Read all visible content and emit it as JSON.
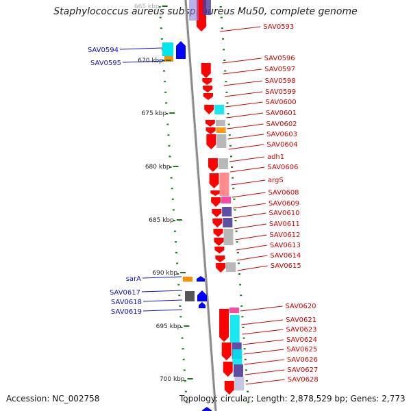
{
  "title": "Staphylococcus aureus subsp. aureus Mu50, complete genome",
  "footer": {
    "accession": "Accession: NC_002758",
    "summary": "Topology: circular; Length: 2,878,529 bp; Genes: 2,773"
  },
  "scale_labels": [
    "665 kbp",
    "670 kbp",
    "675 kbp",
    "680 kbp",
    "685 kbp",
    "690 kbp",
    "695 kbp",
    "700 kbp"
  ],
  "minus_strand_genes": [
    "SAV0594",
    "SAV0595",
    "sarA",
    "SAV0617",
    "SAV0618",
    "SAV0619"
  ],
  "plus_strand_genes": [
    "SAV0593",
    "SAV0596",
    "SAV0597",
    "SAV0598",
    "SAV0599",
    "SAV0600",
    "SAV0601",
    "SAV0602",
    "SAV0603",
    "SAV0604",
    "adh1",
    "SAV0606",
    "argS",
    "SAV0608",
    "SAV0609",
    "SAV0610",
    "SAV0611",
    "SAV0612",
    "SAV0613",
    "SAV0614",
    "SAV0615",
    "SAV0620",
    "SAV0621",
    "SAV0623",
    "SAV0624",
    "SAV0625",
    "SAV0626",
    "SAV0627",
    "SAV0628"
  ],
  "colors": {
    "plus_gene": "#ff0000",
    "minus_gene": "#0000ff",
    "plus_label": "#d40000",
    "minus_label": "#1010c8",
    "backbone": "#8a8a8a",
    "tick": "#1a7a1a",
    "cyan_feature": "#00e5ee",
    "purple_feature": "#4b3c9c",
    "grey_feature": "#b0b0b0",
    "orange_feature": "#ff8c00",
    "pink_feature": "#ff3399",
    "salmon_feature": "#ff8080"
  }
}
